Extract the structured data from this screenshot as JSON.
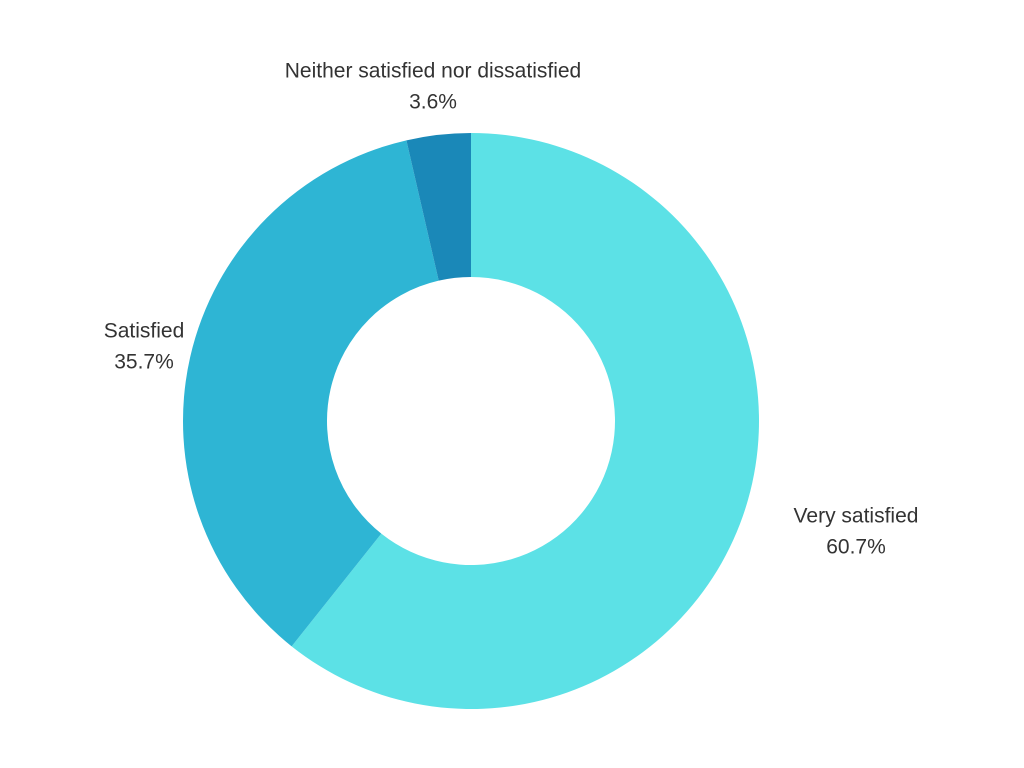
{
  "chart_data": {
    "type": "pie",
    "donut": true,
    "start": "top",
    "direction": "clockwise",
    "title": "",
    "slices": [
      {
        "label": "Very satisfied",
        "value": 60.7,
        "display": "60.7%",
        "color": "#5ce1e6"
      },
      {
        "label": "Satisfied",
        "value": 35.7,
        "display": "35.7%",
        "color": "#2eb5d4"
      },
      {
        "label": "Neither satisfied nor dissatisfied",
        "value": 3.6,
        "display": "3.6%",
        "color": "#1a88b8"
      }
    ]
  }
}
